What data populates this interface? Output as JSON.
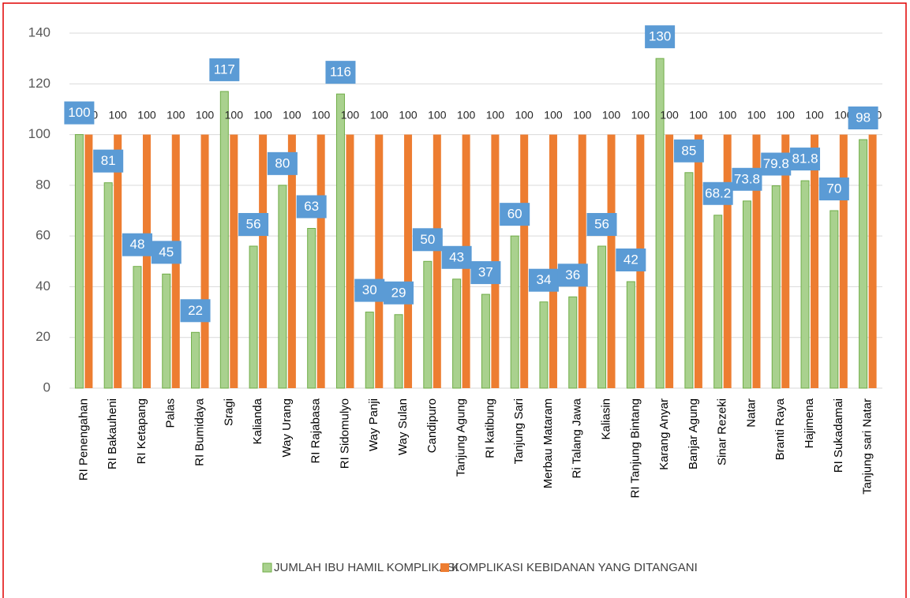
{
  "chart_data": {
    "type": "bar",
    "categories": [
      "RI Penengahan",
      "RI Bakauheni",
      "RI Ketapang",
      "Palas",
      "RI Bumidaya",
      "Sragi",
      "Kalianda",
      "Way Urang",
      "RI Rajabasa",
      "RI Sidomulyo",
      "Way Panji",
      "Way Sulan",
      "Candipuro",
      "Tanjung Agung",
      "RI katibung",
      "Tanjung Sari",
      "Merbau Mataram",
      "Ri Talang Jawa",
      "Kaliasin",
      "RI Tanjung Bintang",
      "Karang Anyar",
      "Banjar Agung",
      "Sinar Rezeki",
      "Natar",
      "Branti Raya",
      "Hajimena",
      "RI Sukadamai",
      "Tanjung sari Natar"
    ],
    "series": [
      {
        "name": "JUMLAH IBU HAMIL KOMPLIKASI",
        "color": "#a9d18e",
        "values": [
          100,
          81,
          48,
          45,
          22,
          117,
          56,
          80,
          63,
          116,
          30,
          29,
          50,
          43,
          37,
          60,
          34,
          36,
          56,
          42,
          130,
          85,
          68.2,
          73.8,
          79.8,
          81.8,
          70,
          98
        ]
      },
      {
        "name": "KOMPLIKASI KEBIDANAN YANG DITANGANI",
        "color": "#ed7d31",
        "values": [
          100,
          100,
          100,
          100,
          100,
          100,
          100,
          100,
          100,
          100,
          100,
          100,
          100,
          100,
          100,
          100,
          100,
          100,
          100,
          100,
          100,
          100,
          100,
          100,
          100,
          100,
          100,
          100
        ]
      }
    ],
    "ylim": [
      0,
      140
    ],
    "yticks": [
      0,
      20,
      40,
      60,
      80,
      100,
      120,
      140
    ],
    "grid": true,
    "legend": "bottom"
  }
}
